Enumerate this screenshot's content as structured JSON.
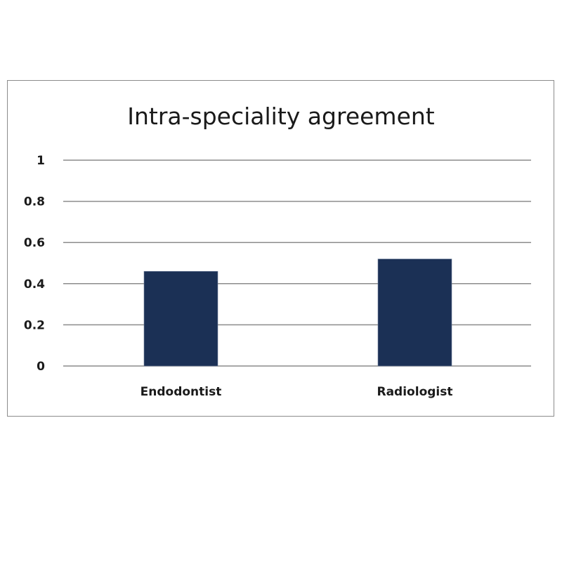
{
  "chart_data": {
    "type": "bar",
    "title": "Intra-speciality agreement",
    "categories": [
      "Endodontist",
      "Radiologist"
    ],
    "values": [
      0.46,
      0.52
    ],
    "xlabel": "",
    "ylabel": "",
    "ylim": [
      0,
      1
    ],
    "yticks": [
      "0",
      "0.2",
      "0.4",
      "0.6",
      "0.8",
      "1"
    ],
    "grid": true,
    "legend": "none",
    "bar_color": "#1b3055",
    "grid_color": "#8c8c8c"
  }
}
